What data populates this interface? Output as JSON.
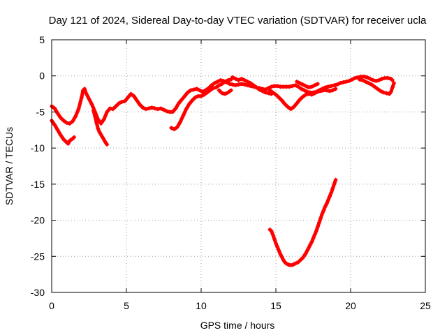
{
  "chart_data": {
    "type": "scatter",
    "title": "Day 121 of 2024, Sidereal Day-to-day VTEC variation (SDTVAR) for receiver ucla",
    "xlabel": "GPS time / hours",
    "ylabel": "SDTVAR / TECUs",
    "xlim": [
      0,
      25
    ],
    "ylim": [
      -30,
      5
    ],
    "xticks": [
      0,
      5,
      10,
      15,
      20,
      25
    ],
    "yticks": [
      5,
      0,
      -5,
      -10,
      -15,
      -20,
      -25,
      -30
    ],
    "xtick_labels": [
      "0",
      "5",
      "10",
      "15",
      "20",
      "25"
    ],
    "ytick_labels": [
      "5",
      "0",
      "-5",
      "-10",
      "-15",
      "-20",
      "-25",
      "-30"
    ],
    "grid": true,
    "marker": "+",
    "color": "#ff0000",
    "series": [
      {
        "name": "track-a",
        "points": [
          [
            0.0,
            -4.2
          ],
          [
            0.2,
            -4.5
          ],
          [
            0.4,
            -5.2
          ],
          [
            0.6,
            -5.8
          ],
          [
            0.8,
            -6.2
          ],
          [
            1.0,
            -6.5
          ],
          [
            1.2,
            -6.6
          ],
          [
            1.4,
            -6.3
          ],
          [
            1.6,
            -5.6
          ],
          [
            1.8,
            -4.6
          ],
          [
            2.0,
            -3.0
          ],
          [
            2.1,
            -2.0
          ],
          [
            2.2,
            -1.8
          ],
          [
            2.3,
            -2.4
          ],
          [
            2.5,
            -3.2
          ],
          [
            2.7,
            -4.0
          ],
          [
            2.9,
            -5.0
          ],
          [
            3.1,
            -6.0
          ],
          [
            3.3,
            -6.6
          ],
          [
            3.5,
            -6.0
          ],
          [
            3.7,
            -5.0
          ],
          [
            3.9,
            -4.5
          ],
          [
            4.1,
            -4.6
          ],
          [
            4.3,
            -4.2
          ],
          [
            4.5,
            -3.8
          ],
          [
            4.7,
            -3.6
          ],
          [
            4.9,
            -3.5
          ],
          [
            5.1,
            -3.0
          ],
          [
            5.3,
            -2.5
          ],
          [
            5.5,
            -2.8
          ],
          [
            5.7,
            -3.4
          ],
          [
            5.9,
            -4.0
          ],
          [
            6.1,
            -4.4
          ],
          [
            6.3,
            -4.6
          ],
          [
            6.5,
            -4.5
          ],
          [
            6.7,
            -4.4
          ],
          [
            6.9,
            -4.5
          ],
          [
            7.1,
            -4.6
          ],
          [
            7.3,
            -4.5
          ],
          [
            7.5,
            -4.7
          ],
          [
            7.7,
            -4.9
          ],
          [
            7.9,
            -5.0
          ],
          [
            8.1,
            -5.0
          ],
          [
            8.3,
            -4.5
          ],
          [
            8.5,
            -3.8
          ],
          [
            8.7,
            -3.3
          ],
          [
            8.9,
            -2.8
          ],
          [
            9.1,
            -2.3
          ],
          [
            9.3,
            -2.0
          ],
          [
            9.5,
            -1.9
          ],
          [
            9.7,
            -1.8
          ],
          [
            9.9,
            -2.0
          ],
          [
            10.1,
            -2.2
          ],
          [
            10.3,
            -2.0
          ],
          [
            10.5,
            -1.7
          ],
          [
            10.7,
            -1.3
          ],
          [
            10.9,
            -1.0
          ],
          [
            11.1,
            -0.8
          ],
          [
            11.3,
            -0.6
          ],
          [
            11.5,
            -0.7
          ],
          [
            11.7,
            -0.9
          ],
          [
            11.9,
            -1.1
          ],
          [
            12.1,
            -1.2
          ],
          [
            12.3,
            -1.3
          ],
          [
            12.5,
            -1.2
          ],
          [
            12.7,
            -1.1
          ],
          [
            12.9,
            -1.2
          ],
          [
            13.1,
            -1.3
          ],
          [
            13.3,
            -1.4
          ],
          [
            13.5,
            -1.5
          ],
          [
            13.7,
            -1.6
          ],
          [
            13.9,
            -1.7
          ],
          [
            14.1,
            -1.8
          ],
          [
            14.3,
            -1.9
          ],
          [
            14.5,
            -1.7
          ],
          [
            14.7,
            -1.5
          ],
          [
            14.9,
            -1.4
          ],
          [
            15.1,
            -1.4
          ],
          [
            15.3,
            -1.5
          ],
          [
            15.5,
            -1.5
          ],
          [
            15.7,
            -1.5
          ],
          [
            15.9,
            -1.5
          ],
          [
            16.1,
            -1.4
          ],
          [
            16.3,
            -1.3
          ],
          [
            16.5,
            -1.5
          ],
          [
            16.7,
            -1.8
          ],
          [
            16.9,
            -2.0
          ],
          [
            17.1,
            -2.2
          ],
          [
            17.3,
            -2.3
          ],
          [
            17.5,
            -2.3
          ],
          [
            17.7,
            -2.2
          ],
          [
            17.9,
            -2.0
          ],
          [
            18.1,
            -1.8
          ],
          [
            18.3,
            -1.6
          ],
          [
            18.5,
            -1.5
          ],
          [
            18.7,
            -1.4
          ],
          [
            18.9,
            -1.3
          ],
          [
            19.1,
            -1.2
          ],
          [
            19.3,
            -1.0
          ],
          [
            19.5,
            -0.9
          ],
          [
            19.7,
            -0.8
          ],
          [
            19.9,
            -0.7
          ],
          [
            20.1,
            -0.5
          ],
          [
            20.3,
            -0.3
          ],
          [
            20.5,
            -0.2
          ],
          [
            20.7,
            -0.1
          ],
          [
            20.9,
            -0.1
          ],
          [
            21.1,
            -0.2
          ],
          [
            21.3,
            -0.4
          ],
          [
            21.5,
            -0.6
          ],
          [
            21.7,
            -0.7
          ],
          [
            21.9,
            -0.6
          ],
          [
            22.1,
            -0.4
          ],
          [
            22.3,
            -0.3
          ],
          [
            22.5,
            -0.3
          ],
          [
            22.7,
            -0.4
          ],
          [
            22.8,
            -0.6
          ]
        ]
      },
      {
        "name": "track-b",
        "points": [
          [
            0.0,
            -6.2
          ],
          [
            0.2,
            -6.8
          ],
          [
            0.4,
            -7.5
          ],
          [
            0.6,
            -8.2
          ],
          [
            0.8,
            -8.8
          ],
          [
            1.0,
            -9.2
          ],
          [
            1.1,
            -9.4
          ],
          [
            1.2,
            -9.0
          ],
          [
            1.4,
            -8.7
          ],
          [
            1.5,
            -8.5
          ]
        ]
      },
      {
        "name": "track-c",
        "points": [
          [
            2.8,
            -4.8
          ],
          [
            3.0,
            -6.5
          ],
          [
            3.1,
            -7.3
          ],
          [
            3.2,
            -7.8
          ],
          [
            3.4,
            -8.5
          ],
          [
            3.6,
            -9.2
          ],
          [
            3.7,
            -9.5
          ]
        ]
      },
      {
        "name": "track-d",
        "points": [
          [
            8.0,
            -7.2
          ],
          [
            8.2,
            -7.4
          ],
          [
            8.4,
            -7.1
          ],
          [
            8.6,
            -6.4
          ],
          [
            8.8,
            -5.5
          ],
          [
            9.0,
            -4.6
          ],
          [
            9.2,
            -3.9
          ],
          [
            9.4,
            -3.4
          ],
          [
            9.6,
            -3.0
          ],
          [
            9.8,
            -2.8
          ],
          [
            10.0,
            -2.8
          ],
          [
            10.2,
            -2.6
          ],
          [
            10.4,
            -2.3
          ],
          [
            10.6,
            -2.0
          ],
          [
            10.8,
            -1.7
          ],
          [
            11.0,
            -1.6
          ],
          [
            11.2,
            -1.3
          ],
          [
            11.4,
            -1.1
          ],
          [
            11.6,
            -0.8
          ],
          [
            11.8,
            -0.6
          ],
          [
            12.0,
            -0.5
          ],
          [
            12.1,
            -0.2
          ],
          [
            12.3,
            -0.4
          ],
          [
            12.5,
            -0.6
          ],
          [
            12.7,
            -0.4
          ],
          [
            12.9,
            -0.6
          ],
          [
            13.1,
            -0.8
          ],
          [
            13.3,
            -1.0
          ],
          [
            13.5,
            -1.3
          ],
          [
            13.7,
            -1.6
          ],
          [
            13.9,
            -1.9
          ],
          [
            14.1,
            -2.1
          ],
          [
            14.3,
            -2.3
          ],
          [
            14.5,
            -2.4
          ],
          [
            14.7,
            -2.5
          ]
        ]
      },
      {
        "name": "track-e",
        "points": [
          [
            11.2,
            -2.0
          ],
          [
            11.4,
            -2.4
          ],
          [
            11.6,
            -2.5
          ],
          [
            11.8,
            -2.3
          ],
          [
            12.0,
            -2.0
          ]
        ]
      },
      {
        "name": "track-f",
        "points": [
          [
            14.6,
            -2.0
          ],
          [
            14.8,
            -2.3
          ],
          [
            15.0,
            -2.6
          ],
          [
            15.2,
            -3.0
          ],
          [
            15.4,
            -3.4
          ],
          [
            15.6,
            -3.9
          ],
          [
            15.8,
            -4.3
          ],
          [
            16.0,
            -4.6
          ],
          [
            16.2,
            -4.3
          ],
          [
            16.4,
            -3.8
          ],
          [
            16.6,
            -3.3
          ],
          [
            16.8,
            -2.9
          ],
          [
            17.0,
            -2.6
          ],
          [
            17.2,
            -2.5
          ],
          [
            17.4,
            -2.6
          ],
          [
            17.6,
            -2.4
          ],
          [
            17.8,
            -2.2
          ],
          [
            18.0,
            -2.1
          ],
          [
            18.2,
            -2.0
          ],
          [
            18.4,
            -2.0
          ],
          [
            18.6,
            -2.1
          ],
          [
            18.8,
            -2.0
          ],
          [
            19.0,
            -1.8
          ]
        ]
      },
      {
        "name": "track-g",
        "points": [
          [
            16.4,
            -0.8
          ],
          [
            16.6,
            -1.0
          ],
          [
            16.8,
            -1.2
          ],
          [
            17.0,
            -1.4
          ],
          [
            17.2,
            -1.6
          ],
          [
            17.4,
            -1.5
          ],
          [
            17.6,
            -1.3
          ],
          [
            17.8,
            -1.1
          ]
        ]
      },
      {
        "name": "track-h",
        "points": [
          [
            20.6,
            -0.5
          ],
          [
            20.8,
            -0.6
          ],
          [
            21.0,
            -0.8
          ],
          [
            21.2,
            -1.0
          ],
          [
            21.4,
            -1.2
          ],
          [
            21.6,
            -1.5
          ],
          [
            21.8,
            -1.8
          ],
          [
            22.0,
            -2.1
          ],
          [
            22.2,
            -2.3
          ],
          [
            22.4,
            -2.4
          ],
          [
            22.6,
            -2.5
          ],
          [
            22.7,
            -2.2
          ],
          [
            22.8,
            -1.6
          ],
          [
            22.9,
            -1.0
          ]
        ]
      },
      {
        "name": "track-i",
        "points": [
          [
            14.6,
            -21.3
          ],
          [
            14.7,
            -21.5
          ],
          [
            14.8,
            -22.0
          ],
          [
            14.9,
            -22.6
          ],
          [
            15.0,
            -23.2
          ],
          [
            15.1,
            -23.7
          ],
          [
            15.2,
            -24.2
          ],
          [
            15.3,
            -24.7
          ],
          [
            15.4,
            -25.1
          ],
          [
            15.5,
            -25.5
          ],
          [
            15.6,
            -25.8
          ],
          [
            15.7,
            -26.0
          ],
          [
            15.8,
            -26.1
          ],
          [
            15.9,
            -26.2
          ],
          [
            16.0,
            -26.2
          ],
          [
            16.1,
            -26.2
          ],
          [
            16.2,
            -26.1
          ],
          [
            16.3,
            -26.0
          ],
          [
            16.4,
            -25.9
          ],
          [
            16.5,
            -25.8
          ],
          [
            16.6,
            -25.6
          ],
          [
            16.7,
            -25.4
          ],
          [
            16.8,
            -25.2
          ],
          [
            16.9,
            -24.9
          ],
          [
            17.0,
            -24.6
          ],
          [
            17.1,
            -24.2
          ],
          [
            17.2,
            -23.8
          ],
          [
            17.3,
            -23.4
          ],
          [
            17.4,
            -23.0
          ],
          [
            17.5,
            -22.5
          ],
          [
            17.6,
            -22.0
          ],
          [
            17.7,
            -21.5
          ],
          [
            17.8,
            -20.9
          ],
          [
            17.9,
            -20.3
          ],
          [
            18.0,
            -19.7
          ],
          [
            18.1,
            -19.1
          ],
          [
            18.2,
            -18.6
          ],
          [
            18.3,
            -18.1
          ],
          [
            18.4,
            -17.7
          ],
          [
            18.5,
            -17.2
          ],
          [
            18.6,
            -16.7
          ],
          [
            18.7,
            -16.2
          ],
          [
            18.8,
            -15.6
          ],
          [
            18.9,
            -15.0
          ],
          [
            19.0,
            -14.4
          ]
        ]
      }
    ]
  }
}
